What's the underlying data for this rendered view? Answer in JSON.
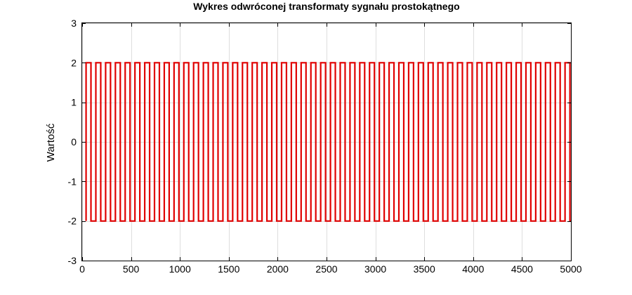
{
  "chart_data": {
    "type": "line",
    "title": "Wykres odwróconej transformaty sygnału prostokątnego",
    "xlabel": "",
    "ylabel": "Wartość",
    "xlim": [
      0,
      5000
    ],
    "ylim": [
      -3,
      3
    ],
    "xticks": [
      0,
      500,
      1000,
      1500,
      2000,
      2500,
      3000,
      3500,
      4000,
      4500,
      5000
    ],
    "yticks": [
      3,
      2,
      1,
      0,
      -1,
      -2,
      -3
    ],
    "grid": true,
    "series": [
      {
        "color": "#e00000",
        "waveform": "square",
        "high": 2,
        "low": -2,
        "period": 100,
        "x_start": 40,
        "x_end": 5000
      }
    ]
  }
}
